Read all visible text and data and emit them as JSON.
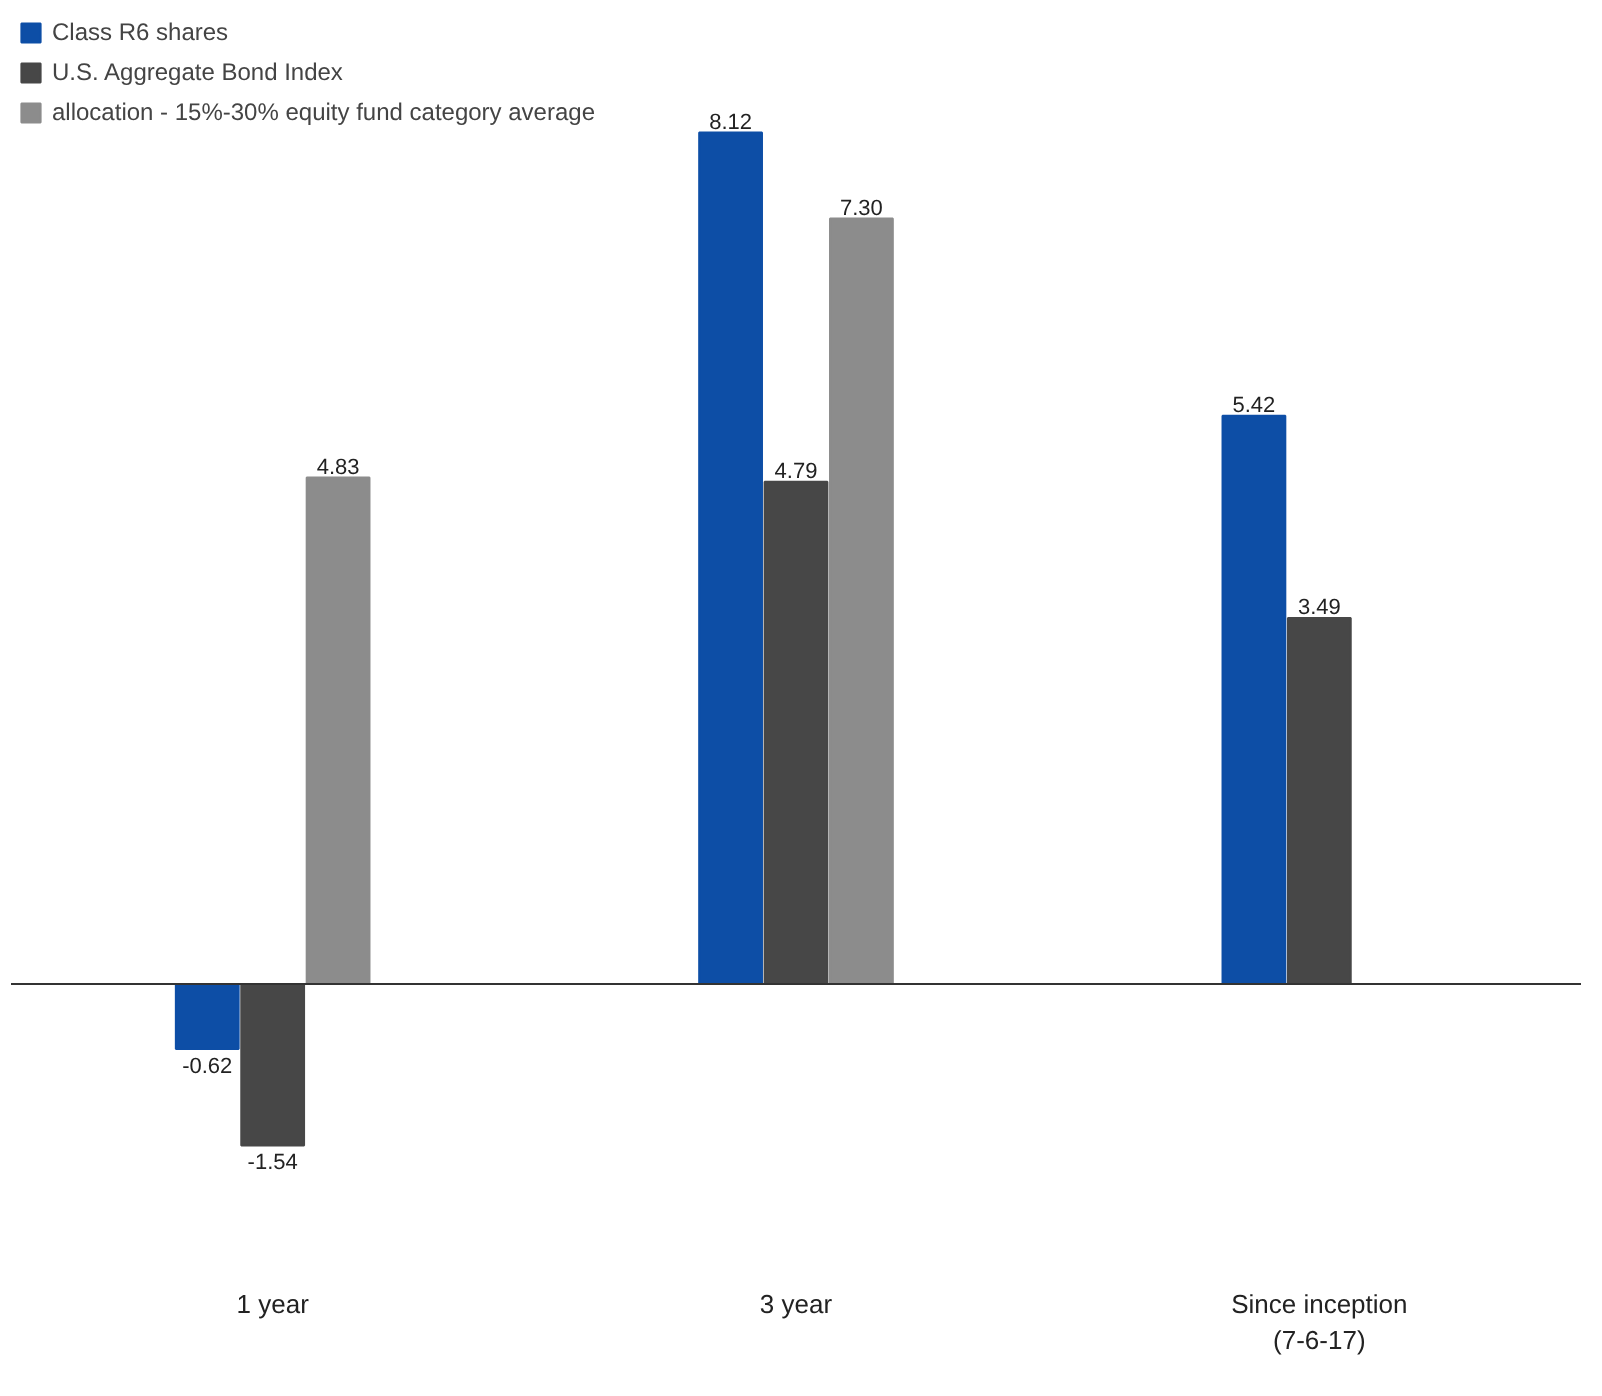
{
  "chart_data": {
    "type": "bar",
    "categories": [
      "1 year",
      "3 year",
      "Since inception\n(7-6-17)"
    ],
    "series": [
      {
        "name": "Class R6 shares",
        "color": "#0d4ea6",
        "values": [
          -0.62,
          8.12,
          5.42
        ],
        "value_labels": [
          "-0.62",
          "8.12",
          "5.42"
        ]
      },
      {
        "name": "U.S. Aggregate Bond Index",
        "color": "#474747",
        "values": [
          -1.54,
          4.79,
          3.49
        ],
        "value_labels": [
          "-1.54",
          "4.79",
          "3.49"
        ]
      },
      {
        "name": "allocation - 15%-30% equity fund category average",
        "color": "#8c8c8c",
        "values": [
          4.83,
          7.3,
          null
        ],
        "value_labels": [
          "4.83",
          "7.30",
          null
        ]
      }
    ],
    "tick_labels": "x",
    "legend": "top left",
    "grid": false
  }
}
